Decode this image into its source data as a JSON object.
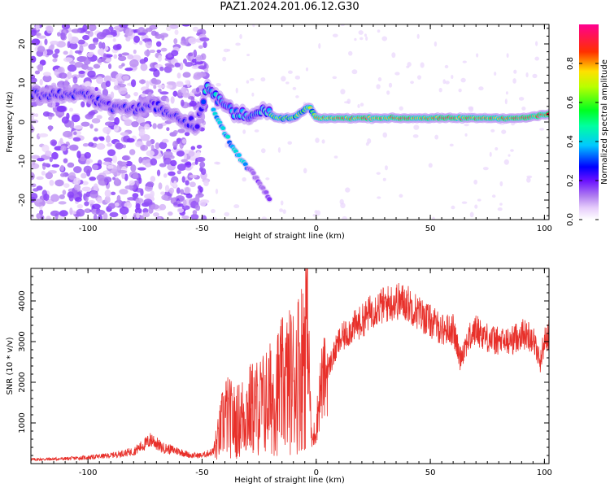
{
  "title": "PAZ1.2024.201.06.12.G30",
  "chart_data": [
    {
      "type": "heatmap",
      "xlabel": "Height of straight line (km)",
      "ylabel": "Frequency (Hz)",
      "xlim": [
        -125,
        102
      ],
      "ylim": [
        -25,
        25
      ],
      "xticks": [
        -100,
        -50,
        0,
        50,
        100
      ],
      "yticks": [
        -20,
        -10,
        0,
        10,
        20
      ],
      "colorbar": {
        "label": "Normalized spectral amplitude",
        "ticks": [
          0.0,
          0.2,
          0.4,
          0.6,
          0.8
        ],
        "range": [
          0,
          1
        ],
        "colormap": [
          "#ffffff",
          "#d9b8f5",
          "#9a4de8",
          "#5a00ff",
          "#0000ff",
          "#00e0ff",
          "#00ff40",
          "#c8ff00",
          "#ffd000",
          "#ff2020",
          "#ff0088"
        ]
      },
      "ridge": {
        "name": "dominant frequency",
        "points": [
          [
            -120,
            7
          ],
          [
            -110,
            7
          ],
          [
            -100,
            7
          ],
          [
            -90,
            4
          ],
          [
            -80,
            3
          ],
          [
            -72,
            4.5
          ],
          [
            -66,
            3
          ],
          [
            -60,
            1
          ],
          [
            -52,
            -1
          ],
          [
            -48,
            10
          ],
          [
            -45,
            7
          ],
          [
            -42,
            5
          ],
          [
            -35,
            2
          ],
          [
            -28,
            2
          ],
          [
            -22,
            3
          ],
          [
            -18,
            1
          ],
          [
            -10,
            1
          ],
          [
            -5,
            3
          ],
          [
            -3,
            4
          ],
          [
            0,
            1
          ],
          [
            10,
            1
          ],
          [
            30,
            1
          ],
          [
            50,
            1
          ],
          [
            70,
            1
          ],
          [
            90,
            1
          ],
          [
            102,
            2
          ]
        ]
      },
      "branch": {
        "name": "descending branch",
        "points": [
          [
            -45,
            3
          ],
          [
            -40,
            -3
          ],
          [
            -35,
            -8
          ],
          [
            -32,
            -10
          ],
          [
            -28,
            -13
          ],
          [
            -24,
            -16
          ],
          [
            -20,
            -20
          ]
        ]
      }
    },
    {
      "type": "line",
      "xlabel": "Height of straight line (km)",
      "ylabel": "SNR (10 * v/v)",
      "xlim": [
        -125,
        102
      ],
      "ylim": [
        0,
        4800
      ],
      "xticks": [
        -100,
        -50,
        0,
        50,
        100
      ],
      "yticks": [
        1000,
        2000,
        3000,
        4000
      ],
      "line_color": "#e8302a",
      "series": [
        {
          "x": [
            -125,
            -110,
            -100,
            -90,
            -80,
            -75,
            -72,
            -68,
            -60,
            -55,
            -50,
            -45,
            -43,
            -40,
            -35,
            -30,
            -25,
            -20,
            -15,
            -10,
            -6,
            -4,
            -2,
            0,
            2,
            5,
            10,
            15,
            20,
            25,
            30,
            35,
            40,
            45,
            50,
            55,
            60,
            63,
            66,
            70,
            75,
            80,
            85,
            90,
            95,
            98,
            100,
            102
          ],
          "y": [
            100,
            120,
            150,
            200,
            300,
            480,
            600,
            400,
            300,
            200,
            200,
            300,
            600,
            1200,
            1000,
            1300,
            1400,
            1600,
            1900,
            2100,
            2500,
            3800,
            500,
            900,
            1900,
            2300,
            3000,
            3300,
            3500,
            3800,
            3900,
            4000,
            3950,
            3700,
            3500,
            3300,
            3300,
            2600,
            3000,
            3300,
            3100,
            3000,
            3000,
            3200,
            3100,
            2500,
            3000,
            3200
          ]
        }
      ]
    }
  ]
}
